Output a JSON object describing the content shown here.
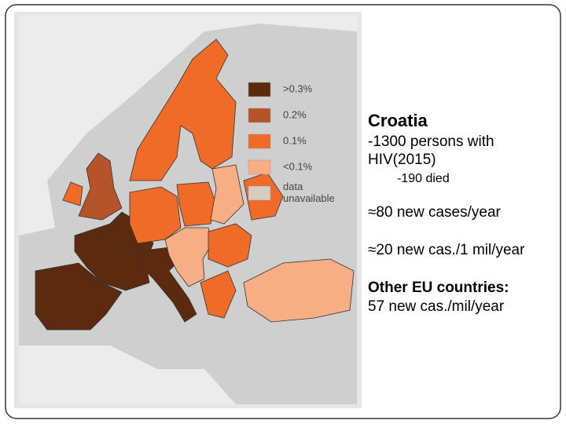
{
  "legend": {
    "items": [
      {
        "label_lines": [
          ">0.3%"
        ],
        "color": "#5c2a0e"
      },
      {
        "label_lines": [
          "0.2%"
        ],
        "color": "#b5532a"
      },
      {
        "label_lines": [
          "0.1%"
        ],
        "color": "#f06a28"
      },
      {
        "label_lines": [
          "<0.1%"
        ],
        "color": "#f7ae84"
      },
      {
        "label_lines": [
          "data",
          "unavailable"
        ],
        "color": "#d9cbbf"
      }
    ]
  },
  "text": {
    "title": "Croatia",
    "persons": [
      "-1300 persons with",
      "HIV(2015)"
    ],
    "died": "-190 died",
    "new_cases": "≈80 new cases/year",
    "per_million": "≈20 new cas./1 mil/year",
    "other_label": "Other EU countries:",
    "other_value": "57 new cas./mil/year"
  }
}
